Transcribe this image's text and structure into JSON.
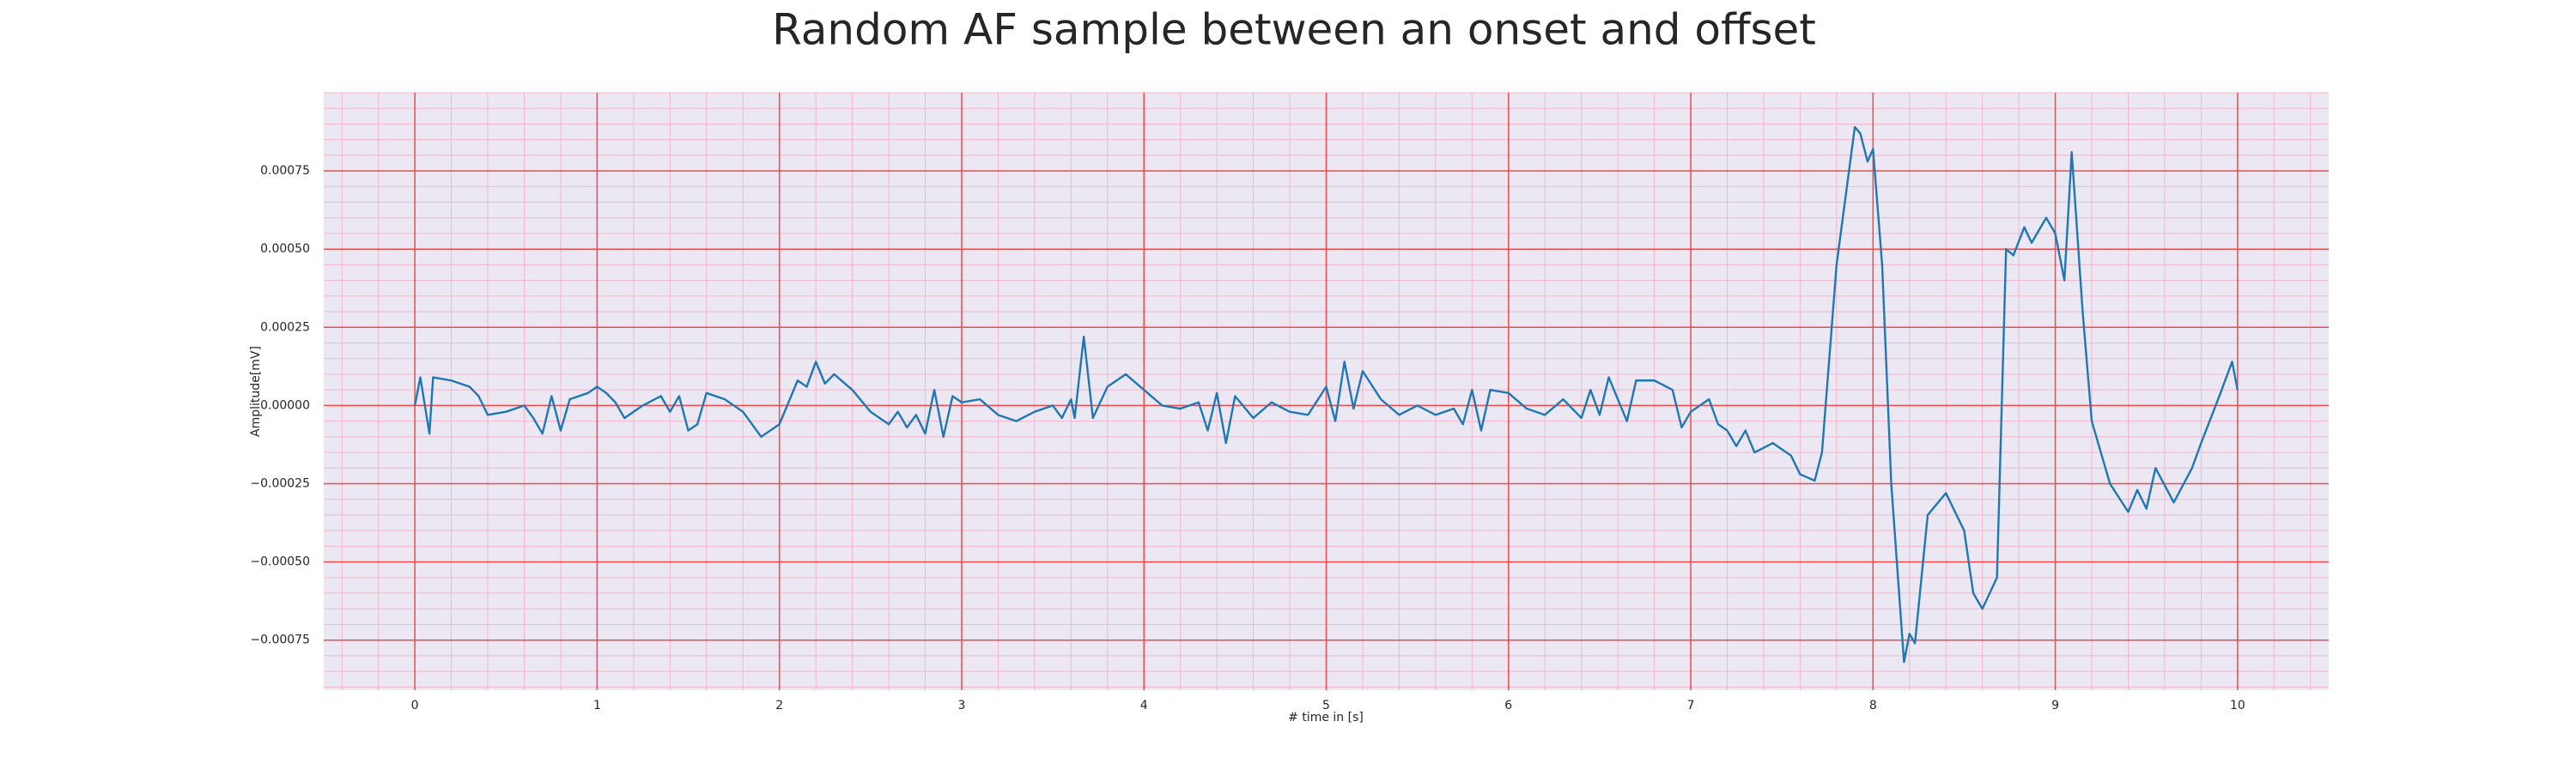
{
  "chart_data": {
    "type": "line",
    "title": "Random AF sample between an onset and offset",
    "xlabel": "# time in [s]",
    "ylabel": "Amplitude[mV]",
    "color": "#1f77b4",
    "grid": true,
    "minor_grid": {
      "x_step": 0.2,
      "y_step": 5e-05
    },
    "xlim": [
      -0.5,
      10.5
    ],
    "ylim": [
      -0.00091,
      0.001
    ],
    "xticks": [
      0,
      1,
      2,
      3,
      4,
      5,
      6,
      7,
      8,
      9,
      10
    ],
    "yticks": [
      {
        "value": -0.00075,
        "label": "−0.00075"
      },
      {
        "value": -0.0005,
        "label": "−0.00050"
      },
      {
        "value": -0.00025,
        "label": "−0.00025"
      },
      {
        "value": 0,
        "label": "0.00000"
      },
      {
        "value": 0.00025,
        "label": "0.00025"
      },
      {
        "value": 0.0005,
        "label": "0.00050"
      },
      {
        "value": 0.00075,
        "label": "0.00075"
      }
    ],
    "x": [
      0.0,
      0.03,
      0.08,
      0.1,
      0.2,
      0.3,
      0.35,
      0.4,
      0.5,
      0.6,
      0.65,
      0.7,
      0.75,
      0.8,
      0.85,
      0.95,
      1.0,
      1.05,
      1.1,
      1.15,
      1.25,
      1.35,
      1.4,
      1.45,
      1.5,
      1.55,
      1.6,
      1.7,
      1.8,
      1.9,
      2.0,
      2.1,
      2.15,
      2.2,
      2.25,
      2.3,
      2.4,
      2.5,
      2.6,
      2.65,
      2.7,
      2.75,
      2.8,
      2.85,
      2.9,
      2.95,
      3.0,
      3.1,
      3.2,
      3.3,
      3.4,
      3.5,
      3.55,
      3.6,
      3.62,
      3.67,
      3.72,
      3.8,
      3.9,
      4.0,
      4.1,
      4.2,
      4.3,
      4.35,
      4.4,
      4.45,
      4.5,
      4.6,
      4.7,
      4.8,
      4.9,
      5.0,
      5.05,
      5.1,
      5.15,
      5.2,
      5.3,
      5.4,
      5.5,
      5.6,
      5.7,
      5.75,
      5.8,
      5.85,
      5.9,
      6.0,
      6.1,
      6.2,
      6.3,
      6.4,
      6.45,
      6.5,
      6.55,
      6.6,
      6.65,
      6.7,
      6.8,
      6.9,
      6.95,
      7.0,
      7.1,
      7.15,
      7.2,
      7.25,
      7.3,
      7.35,
      7.45,
      7.55,
      7.6,
      7.68,
      7.72,
      7.8,
      7.9,
      7.93,
      7.97,
      8.0,
      8.05,
      8.1,
      8.17,
      8.2,
      8.23,
      8.3,
      8.4,
      8.5,
      8.55,
      8.6,
      8.68,
      8.73,
      8.77,
      8.83,
      8.87,
      8.95,
      9.0,
      9.05,
      9.09,
      9.15,
      9.2,
      9.3,
      9.4,
      9.45,
      9.5,
      9.55,
      9.65,
      9.75,
      9.8,
      9.9,
      9.97,
      10.0
    ],
    "values": [
      0,
      9e-05,
      -9e-05,
      9e-05,
      8e-05,
      6e-05,
      3e-05,
      -3e-05,
      -2e-05,
      0,
      -4e-05,
      -9e-05,
      3e-05,
      -8e-05,
      2e-05,
      4e-05,
      6e-05,
      4e-05,
      1e-05,
      -4e-05,
      0,
      3e-05,
      -2e-05,
      3e-05,
      -8e-05,
      -6e-05,
      4e-05,
      2e-05,
      -2e-05,
      -0.0001,
      -6e-05,
      8e-05,
      6e-05,
      0.00014,
      7e-05,
      0.0001,
      5e-05,
      -2e-05,
      -6e-05,
      -2e-05,
      -7e-05,
      -3e-05,
      -9e-05,
      5e-05,
      -0.0001,
      3e-05,
      1e-05,
      2e-05,
      -3e-05,
      -5e-05,
      -2e-05,
      0,
      -4e-05,
      2e-05,
      -4e-05,
      0.00022,
      -4e-05,
      6e-05,
      0.0001,
      5e-05,
      0,
      -1e-05,
      1e-05,
      -8e-05,
      4e-05,
      -0.00012,
      3e-05,
      -4e-05,
      1e-05,
      -2e-05,
      -3e-05,
      6e-05,
      -5e-05,
      0.00014,
      -1e-05,
      0.00011,
      2e-05,
      -3e-05,
      0,
      -3e-05,
      -1e-05,
      -6e-05,
      5e-05,
      -8e-05,
      5e-05,
      4e-05,
      -1e-05,
      -3e-05,
      2e-05,
      -4e-05,
      5e-05,
      -3e-05,
      9e-05,
      2e-05,
      -5e-05,
      8e-05,
      8e-05,
      5e-05,
      -7e-05,
      -2e-05,
      2e-05,
      -6e-05,
      -8e-05,
      -0.00013,
      -8e-05,
      -0.00015,
      -0.00012,
      -0.00016,
      -0.00022,
      -0.00024,
      -0.00015,
      0.00045,
      0.00089,
      0.00087,
      0.00078,
      0.00082,
      0.00045,
      -0.00025,
      -0.00082,
      -0.00073,
      -0.00076,
      -0.00035,
      -0.00028,
      -0.0004,
      -0.0006,
      -0.00065,
      -0.00055,
      0.0005,
      0.00048,
      0.00057,
      0.00052,
      0.0006,
      0.00055,
      0.0004,
      0.00081,
      0.0003,
      -5e-05,
      -0.00025,
      -0.00034,
      -0.00027,
      -0.00033,
      -0.0002,
      -0.00031,
      -0.0002,
      -0.00012,
      3e-05,
      0.00014,
      5e-05
    ]
  }
}
